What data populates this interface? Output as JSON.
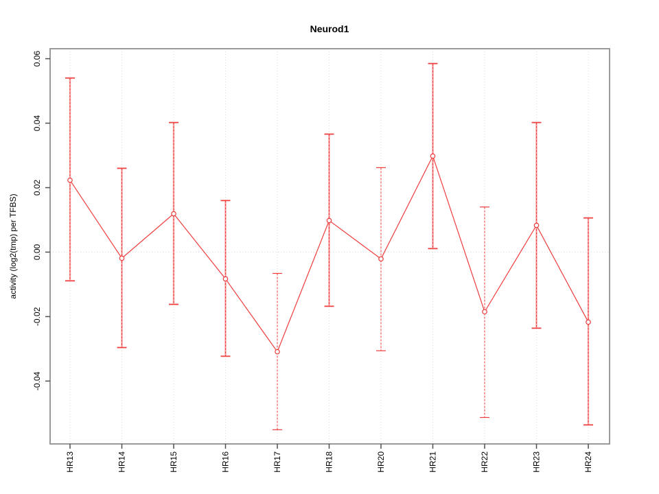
{
  "title": "Neurod1",
  "chart_data": {
    "type": "line",
    "title": "Neurod1",
    "xlabel": "",
    "ylabel": "activity (log2(tmp) per TFBS)",
    "categories": [
      "HR13",
      "HR14",
      "HR15",
      "HR16",
      "HR17",
      "HR18",
      "HR20",
      "HR21",
      "HR22",
      "HR23",
      "HR24"
    ],
    "series": [
      {
        "name": "activity",
        "values": [
          0.0223,
          -0.0019,
          0.0119,
          -0.0083,
          -0.0309,
          0.0098,
          -0.0021,
          0.0298,
          -0.0185,
          0.0083,
          -0.0217
        ],
        "upper": [
          0.054,
          0.026,
          0.0402,
          0.016,
          -0.0066,
          0.0366,
          0.0262,
          0.0585,
          0.014,
          0.0402,
          0.0106
        ],
        "lower": [
          -0.0089,
          -0.0296,
          -0.0162,
          -0.0323,
          -0.0551,
          -0.0168,
          -0.0306,
          0.0011,
          -0.0513,
          -0.0236,
          -0.0536
        ]
      }
    ],
    "error_bar_styles": [
      "solid+dashed",
      "solid+dashed",
      "solid+dashed",
      "solid+dashed",
      "dashed",
      "solid+dashed",
      "dashed",
      "solid+dashed",
      "dashed",
      "solid+dashed",
      "solid+dashed"
    ],
    "point_marker": "open-circle",
    "yticks": [
      0.06,
      0.04,
      0.02,
      0.0,
      -0.02,
      -0.04
    ],
    "ytick_labels": [
      "0.06",
      "0.04",
      "0.02",
      "0.00",
      "-0.02",
      "-0.04"
    ],
    "ylim": [
      -0.0595,
      0.0631
    ],
    "grid": {
      "vertical": "dotted at every category",
      "horizontal": "dotted at 0.00 only",
      "style": "dotted"
    },
    "legend": null,
    "colors": {
      "line": "#ef3b3b",
      "error_bar_pink": "#f7a6a6",
      "grid": "#d9d9d9",
      "frame": "#999999",
      "tick": "#4d4d4d",
      "text": "#000000",
      "background": "#ffffff"
    }
  }
}
